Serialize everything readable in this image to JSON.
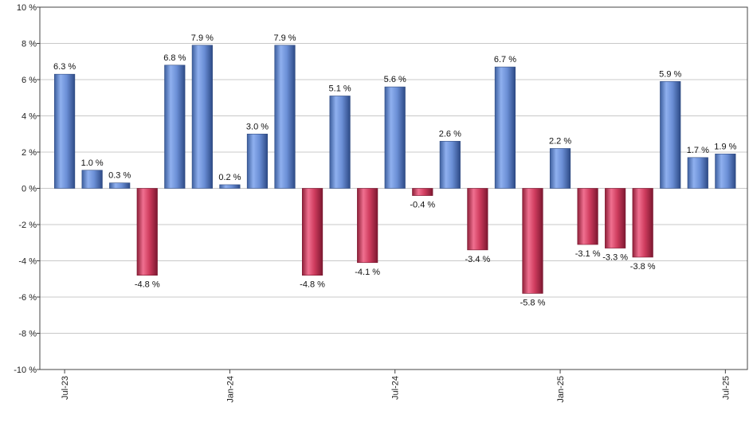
{
  "chart_data": {
    "type": "bar",
    "ylim": [
      -10,
      10
    ],
    "y_step": 2,
    "y_unit": " %",
    "grid": true,
    "colors": {
      "positive": "#6f94de",
      "negative": "#c8385a"
    },
    "x_ticks": [
      {
        "label": "Jul-23",
        "index": 0
      },
      {
        "label": "Jan-24",
        "index": 6
      },
      {
        "label": "Jul-24",
        "index": 12
      },
      {
        "label": "Jan-25",
        "index": 18
      },
      {
        "label": "Jul-25",
        "index": 24
      }
    ],
    "values": [
      6.3,
      1.0,
      0.3,
      -4.8,
      6.8,
      7.9,
      0.2,
      3.0,
      7.9,
      -4.8,
      5.1,
      -4.1,
      5.6,
      -0.4,
      2.6,
      -3.4,
      6.7,
      -5.8,
      2.2,
      -3.1,
      -3.3,
      -3.8,
      5.9,
      1.7,
      1.9
    ],
    "data_labels": [
      "6.3 %",
      "1.0 %",
      "0.3 %",
      "-4.8 %",
      "6.8 %",
      "7.9 %",
      "0.2 %",
      "3.0 %",
      "7.9 %",
      "-4.8 %",
      "5.1 %",
      "-4.1 %",
      "5.6 %",
      "-0.4 %",
      "2.6 %",
      "-3.4 %",
      "6.7 %",
      "-5.8 %",
      "2.2 %",
      "-3.1 %",
      "-3.3 %",
      "-3.8 %",
      "5.9 %",
      "1.7 %",
      "1.9 %"
    ]
  }
}
